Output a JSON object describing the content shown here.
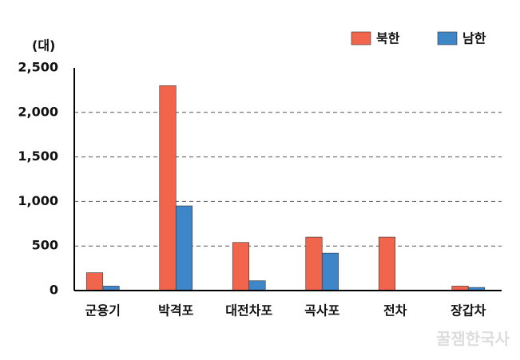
{
  "chart_data": {
    "type": "bar",
    "y_label": "(대)",
    "categories": [
      "군용기",
      "박격포",
      "대전차포",
      "곡사포",
      "전차",
      "장갑차"
    ],
    "series": [
      {
        "name": "북한",
        "color": "#f0654c",
        "values": [
          200,
          2300,
          540,
          600,
          600,
          50
        ]
      },
      {
        "name": "남한",
        "color": "#3f86c8",
        "values": [
          50,
          950,
          110,
          420,
          null,
          35
        ]
      }
    ],
    "ylim": [
      0,
      2500
    ],
    "yticks": [
      0,
      500,
      {
        "value": 1000,
        "label": "1,000"
      },
      {
        "value": 1500,
        "label": "1,500"
      },
      {
        "value": 2000,
        "label": "2,000"
      },
      {
        "value": 2500,
        "label": "2,500"
      }
    ],
    "grid": true,
    "legend": "top-right",
    "watermark": "꿀잼한국사"
  }
}
